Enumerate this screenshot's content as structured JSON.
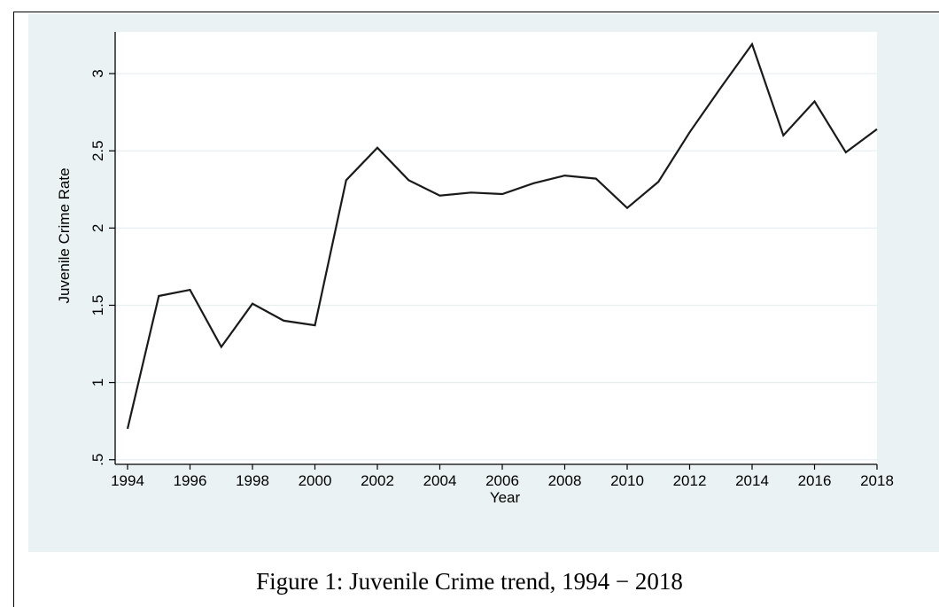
{
  "caption": "Figure 1: Juvenile Crime trend, 1994 − 2018",
  "chart_data": {
    "type": "line",
    "xlabel": "Year",
    "ylabel": "Juvenile Crime Rate",
    "x_ticks": [
      "1994",
      "1996",
      "1998",
      "2000",
      "2002",
      "2004",
      "2006",
      "2008",
      "2010",
      "2012",
      "2014",
      "2016",
      "2018"
    ],
    "y_ticks": [
      ".5",
      "1",
      "1.5",
      "2",
      "2.5",
      "3"
    ],
    "xlim": [
      1994,
      2018
    ],
    "ylim": [
      0.47,
      3.27
    ],
    "grid": true,
    "colors": {
      "background": "#eaf2f3",
      "plot": "#ffffff",
      "line": "#1a1a1a",
      "grid": "#e6eef0"
    },
    "series": [
      {
        "x": [
          1994,
          1995,
          1996,
          1997,
          1998,
          1999,
          2000,
          2001,
          2002,
          2003,
          2004,
          2005,
          2006,
          2007,
          2008,
          2009,
          2010,
          2011,
          2012,
          2013,
          2014,
          2015,
          2016,
          2017,
          2018
        ],
        "values": [
          0.7,
          1.56,
          1.6,
          1.23,
          1.51,
          1.4,
          1.37,
          2.31,
          2.52,
          2.31,
          2.21,
          2.23,
          2.22,
          2.29,
          2.34,
          2.32,
          2.13,
          2.3,
          2.62,
          2.91,
          3.19,
          2.6,
          2.82,
          2.49,
          2.64
        ]
      }
    ]
  }
}
